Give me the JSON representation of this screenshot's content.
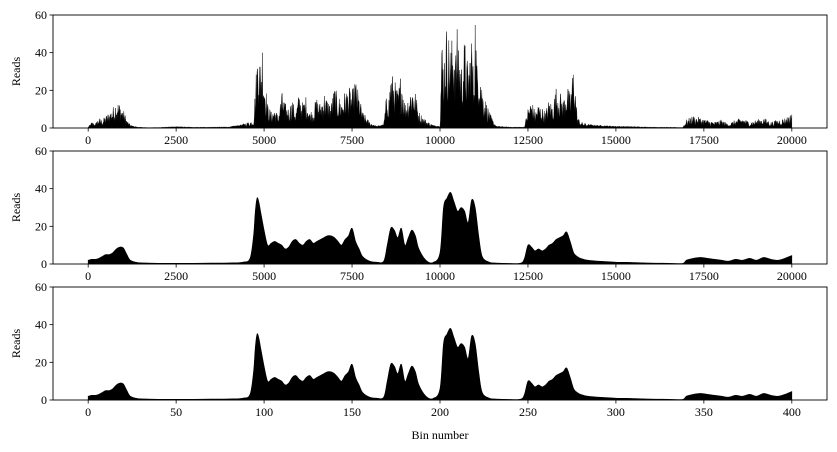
{
  "colors": {
    "fill": "#000000",
    "axis": "#000000",
    "background": "#ffffff"
  },
  "chart_data": [
    {
      "type": "area",
      "panel": "top",
      "xlabel": "",
      "ylabel": "Reads",
      "xlim": [
        -1000,
        21000
      ],
      "ylim": [
        0,
        60
      ],
      "xticks": [
        "0",
        "2500",
        "5000",
        "7500",
        "10000",
        "12500",
        "15000",
        "17500",
        "20000"
      ],
      "yticks": [
        "0",
        "20",
        "40",
        "60"
      ],
      "grid": false,
      "style": "raw",
      "x": [
        0,
        100,
        200,
        300,
        400,
        500,
        600,
        700,
        800,
        900,
        1000,
        1100,
        1200,
        1400,
        1700,
        2000,
        2500,
        3000,
        3500,
        4000,
        4400,
        4700,
        4750,
        4800,
        4850,
        4900,
        4950,
        5000,
        5050,
        5100,
        5200,
        5300,
        5400,
        5500,
        5600,
        5700,
        5800,
        5900,
        6000,
        6100,
        6200,
        6300,
        6400,
        6500,
        6600,
        6700,
        6800,
        6900,
        7000,
        7100,
        7200,
        7300,
        7400,
        7500,
        7600,
        7700,
        7800,
        8000,
        8200,
        8400,
        8500,
        8550,
        8600,
        8700,
        8800,
        8850,
        8900,
        9000,
        9100,
        9200,
        9300,
        9400,
        9600,
        9800,
        10000,
        10050,
        10100,
        10200,
        10300,
        10400,
        10450,
        10500,
        10600,
        10700,
        10800,
        10900,
        10950,
        11000,
        11050,
        11100,
        11200,
        11300,
        11400,
        11500,
        11600,
        12000,
        12400,
        12500,
        12600,
        12700,
        12800,
        12900,
        13000,
        13100,
        13200,
        13300,
        13400,
        13500,
        13600,
        13700,
        13800,
        13900,
        14000,
        14200,
        14500,
        15000,
        15500,
        16000,
        16500,
        16900,
        17000,
        17200,
        17400,
        17600,
        17800,
        18000,
        18200,
        18400,
        18600,
        18800,
        19000,
        19200,
        19400,
        19600,
        19800,
        20000
      ],
      "values": [
        0.5,
        3,
        2,
        5,
        4,
        6,
        8,
        10,
        14,
        12,
        9,
        4,
        1.5,
        0.5,
        0.2,
        0.3,
        0.8,
        0.4,
        0.5,
        0.6,
        2,
        4,
        20,
        35,
        47,
        30,
        44,
        28,
        20,
        12,
        8,
        10,
        6,
        18,
        12,
        10,
        14,
        8,
        18,
        12,
        16,
        8,
        10,
        15,
        12,
        18,
        14,
        12,
        20,
        16,
        14,
        18,
        20,
        18,
        24,
        16,
        8,
        3,
        1,
        2,
        20,
        16,
        28,
        24,
        18,
        22,
        30,
        12,
        16,
        22,
        18,
        8,
        4,
        1.5,
        1,
        45,
        35,
        52,
        40,
        50,
        38,
        52,
        30,
        44,
        30,
        48,
        26,
        60,
        32,
        42,
        20,
        14,
        8,
        4,
        1,
        0.5,
        0.5,
        10,
        14,
        8,
        12,
        10,
        8,
        14,
        12,
        20,
        18,
        14,
        22,
        16,
        33,
        6,
        3,
        2,
        1.5,
        1,
        0.8,
        0.5,
        0.4,
        0.3,
        4,
        6,
        5,
        4,
        3,
        4,
        2,
        4,
        5,
        3,
        4,
        5,
        3,
        4,
        5,
        7
      ]
    },
    {
      "type": "area",
      "panel": "middle",
      "xlabel": "",
      "ylabel": "Reads",
      "xlim": [
        -1000,
        21000
      ],
      "ylim": [
        0,
        60
      ],
      "xticks": [
        "0",
        "2500",
        "5000",
        "7500",
        "10000",
        "12500",
        "15000",
        "17500",
        "20000"
      ],
      "yticks": [
        "0",
        "20",
        "40",
        "60"
      ],
      "grid": false,
      "style": "smooth",
      "x": [
        0,
        100,
        200,
        300,
        400,
        500,
        600,
        700,
        800,
        900,
        1000,
        1100,
        1200,
        1400,
        1700,
        2000,
        2500,
        3000,
        3500,
        4000,
        4400,
        4600,
        4700,
        4750,
        4800,
        4850,
        4900,
        5000,
        5100,
        5200,
        5300,
        5400,
        5500,
        5600,
        5700,
        5800,
        5900,
        6000,
        6100,
        6200,
        6300,
        6400,
        6500,
        6600,
        6700,
        6800,
        6900,
        7000,
        7100,
        7200,
        7300,
        7400,
        7500,
        7600,
        7700,
        7800,
        8000,
        8200,
        8400,
        8500,
        8600,
        8700,
        8800,
        8900,
        9000,
        9100,
        9200,
        9300,
        9400,
        9600,
        9800,
        10000,
        10100,
        10200,
        10300,
        10400,
        10500,
        10600,
        10700,
        10800,
        10900,
        11000,
        11100,
        11200,
        11400,
        11600,
        12000,
        12300,
        12400,
        12500,
        12600,
        12700,
        12800,
        12900,
        13000,
        13100,
        13200,
        13300,
        13400,
        13500,
        13600,
        13700,
        13800,
        13900,
        14000,
        14200,
        14500,
        15000,
        15500,
        16000,
        16500,
        16900,
        17000,
        17200,
        17400,
        17600,
        17800,
        18000,
        18200,
        18400,
        18600,
        18800,
        19000,
        19200,
        19400,
        19600,
        19800,
        20000
      ],
      "values": [
        2,
        2.5,
        2.5,
        3,
        4,
        5,
        5,
        6,
        8,
        9,
        8.5,
        5,
        2,
        0.8,
        0.5,
        0.4,
        0.4,
        0.4,
        0.5,
        0.6,
        1,
        3,
        15,
        28,
        35,
        33,
        28,
        18,
        10,
        11,
        12,
        11,
        10,
        8,
        9,
        12,
        13,
        11,
        10,
        12,
        13,
        11,
        12,
        13,
        14,
        15,
        15,
        14,
        12,
        10,
        13,
        15,
        19,
        12,
        8,
        4,
        1.5,
        1,
        1.5,
        10,
        19,
        18,
        14,
        19,
        10,
        14,
        18,
        15,
        8,
        2,
        0.8,
        6,
        30,
        35,
        38,
        33,
        28,
        30,
        28,
        22,
        34,
        30,
        15,
        4,
        1,
        0.5,
        0.3,
        0.5,
        3,
        10,
        9,
        7,
        8,
        7,
        8,
        10,
        11,
        13,
        14,
        15,
        17,
        12,
        6,
        4,
        3,
        2,
        1.5,
        1,
        0.8,
        0.5,
        0.4,
        0.3,
        2,
        3,
        3.5,
        3,
        2.5,
        2,
        1.5,
        2.5,
        2,
        3,
        2,
        3.5,
        2.5,
        2,
        3,
        4.5
      ]
    },
    {
      "type": "area",
      "panel": "bottom",
      "xlabel": "Bin number",
      "ylabel": "Reads",
      "xlim": [
        -20,
        420
      ],
      "ylim": [
        0,
        60
      ],
      "xticks": [
        "0",
        "50",
        "100",
        "150",
        "200",
        "250",
        "300",
        "350",
        "400"
      ],
      "yticks": [
        "0",
        "20",
        "40",
        "60"
      ],
      "grid": false,
      "style": "smooth",
      "same_profile_as": "middle",
      "x_scale_from_middle": 0.02
    }
  ]
}
